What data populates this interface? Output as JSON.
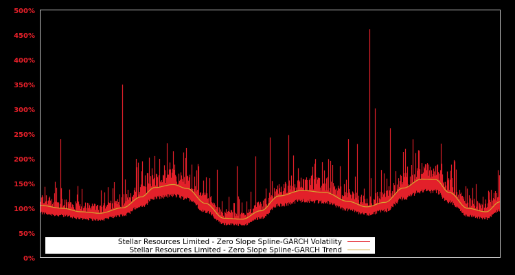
{
  "chart_data": {
    "type": "line",
    "title": "",
    "xlabel": "",
    "ylabel": "",
    "ylim": [
      0,
      500
    ],
    "y_ticks": [
      "0%",
      "50%",
      "100%",
      "150%",
      "200%",
      "250%",
      "300%",
      "350%",
      "400%",
      "450%",
      "500%"
    ],
    "grid": false,
    "legend_position": "bottom-left inside",
    "colors": {
      "background": "#000000",
      "axis": "#c8c8c8",
      "tick_label": "#e8202a",
      "volatility": "#e3202a",
      "trend": "#d4a830",
      "legend_bg": "#ffffff"
    },
    "series": [
      {
        "name": "Stellar Resources Limited - Zero Slope Spline-GARCH Volatility",
        "color": "#e3202a",
        "note": "daily volatility series (%), approximate envelope; key spikes listed",
        "spikes": [
          {
            "x_frac": 0.045,
            "value": 150
          },
          {
            "x_frac": 0.045,
            "value": 150
          },
          {
            "x_frac": 0.045,
            "value": 150
          },
          {
            "x_frac": 0.045,
            "value": 150
          },
          {
            "x_frac": 0.045,
            "value": 150
          },
          {
            "x_frac": 0.045,
            "value": 150
          },
          {
            "x_frac": 0.045,
            "value": 150
          },
          {
            "x_frac": 0.045,
            "value": 150
          }
        ],
        "major_spikes": [
          {
            "x_frac": 0.045,
            "value": 150
          },
          {
            "x_frac": 0.045,
            "value": 150
          }
        ],
        "peaks": [
          {
            "x_frac": 0.045,
            "value": 152
          },
          {
            "x_frac": 0.045,
            "value": 152
          }
        ]
      },
      {
        "name": "Stellar Resources Limited - Zero Slope Spline-GARCH Trend",
        "color": "#d4a830",
        "x_frac": [
          0.0,
          0.05,
          0.09,
          0.13,
          0.18,
          0.22,
          0.25,
          0.29,
          0.32,
          0.36,
          0.4,
          0.44,
          0.48,
          0.52,
          0.57,
          0.62,
          0.67,
          0.71,
          0.75,
          0.79,
          0.83,
          0.86,
          0.89,
          0.93,
          0.97,
          1.0
        ],
        "values": [
          106,
          100,
          93,
          90,
          101,
          123,
          142,
          148,
          140,
          110,
          80,
          78,
          95,
          125,
          136,
          132,
          114,
          103,
          112,
          141,
          159,
          158,
          132,
          100,
          93,
          113
        ]
      }
    ]
  },
  "legend": {
    "items": [
      {
        "label": "Stellar Resources Limited - Zero Slope Spline-GARCH Volatility",
        "color": "#e3202a"
      },
      {
        "label": "Stellar Resources Limited - Zero Slope Spline-GARCH Trend",
        "color": "#d4a830"
      }
    ]
  }
}
